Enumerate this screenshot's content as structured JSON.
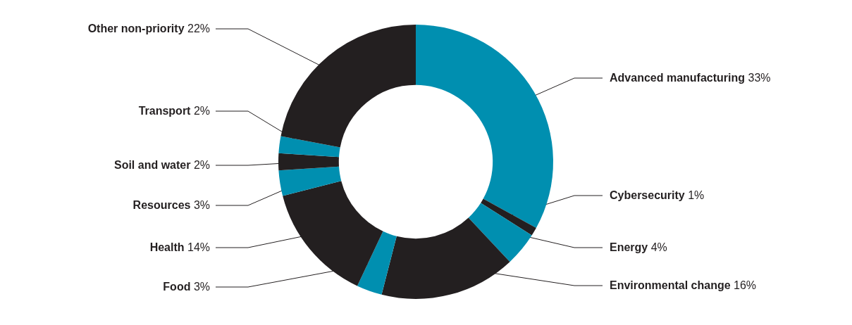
{
  "chart_data": {
    "type": "doughnut",
    "categories": [
      "Advanced manufacturing",
      "Cybersecurity",
      "Energy",
      "Environmental change",
      "Food",
      "Health",
      "Resources",
      "Soil and water",
      "Transport",
      "Other non-priority"
    ],
    "values": [
      33,
      1,
      4,
      16,
      3,
      14,
      3,
      2,
      2,
      22
    ],
    "value_labels": [
      "33%",
      "1%",
      "4%",
      "16%",
      "3%",
      "14%",
      "3%",
      "2%",
      "2%",
      "22%"
    ],
    "colors": [
      "#008fb0",
      "#231f20",
      "#008fb0",
      "#231f20",
      "#008fb0",
      "#231f20",
      "#008fb0",
      "#231f20",
      "#008fb0",
      "#231f20"
    ],
    "data_labels": true
  }
}
